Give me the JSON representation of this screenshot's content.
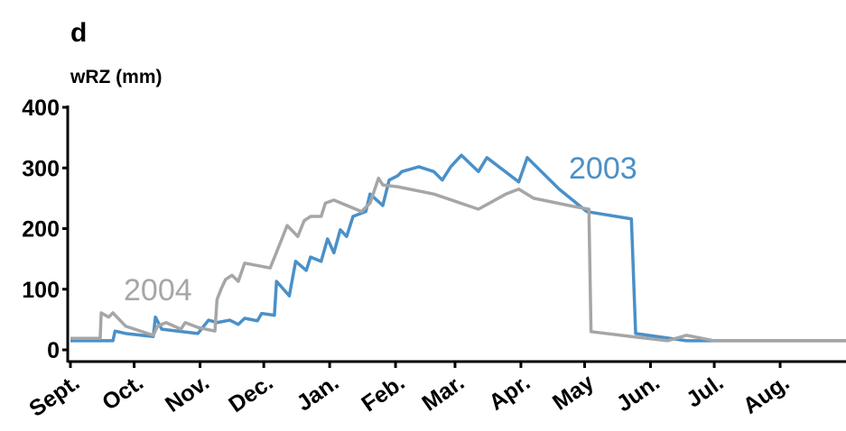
{
  "chart_data": {
    "type": "line",
    "title": "d",
    "y_label": "wRZ (mm)",
    "xlim": [
      0,
      365
    ],
    "xticks": [
      {
        "value": 0,
        "label": "Sept."
      },
      {
        "value": 30,
        "label": "Oct."
      },
      {
        "value": 61,
        "label": "Nov."
      },
      {
        "value": 91,
        "label": "Dec."
      },
      {
        "value": 122,
        "label": "Jan."
      },
      {
        "value": 153,
        "label": "Feb."
      },
      {
        "value": 181,
        "label": "Mar."
      },
      {
        "value": 212,
        "label": "Apr."
      },
      {
        "value": 242,
        "label": "May"
      },
      {
        "value": 273,
        "label": "Jun."
      },
      {
        "value": 303,
        "label": "Jul."
      },
      {
        "value": 334,
        "label": "Aug."
      }
    ],
    "ylim": [
      0,
      400
    ],
    "yticks": [
      0,
      100,
      200,
      300,
      400
    ],
    "series": [
      {
        "name": "2003",
        "color": "#4a90c8",
        "x": [
          0,
          20,
          21,
          26,
          39,
          40,
          43,
          60,
          65,
          69,
          75,
          79,
          82,
          88,
          90,
          96,
          97,
          103,
          106,
          111,
          113,
          118,
          121,
          124,
          127,
          130,
          133,
          139,
          141,
          147,
          150,
          154,
          156,
          164,
          171,
          175,
          179,
          184,
          192,
          196,
          211,
          215,
          230,
          243,
          264,
          266,
          290,
          365
        ],
        "values": [
          15,
          15,
          31,
          27,
          22,
          54,
          34,
          27,
          49,
          45,
          49,
          42,
          52,
          48,
          60,
          57,
          113,
          89,
          146,
          131,
          153,
          146,
          183,
          160,
          198,
          187,
          220,
          228,
          257,
          238,
          280,
          287,
          294,
          302,
          294,
          280,
          302,
          321,
          294,
          317,
          277,
          317,
          265,
          228,
          216,
          27,
          15,
          15
        ]
      },
      {
        "name": "2004",
        "color": "#a6a6a6",
        "x": [
          0,
          14,
          14.5,
          18,
          20,
          26,
          39,
          41,
          45,
          52,
          54,
          60,
          68,
          69,
          71,
          73,
          76,
          79,
          82,
          94,
          97,
          102,
          107,
          110,
          113,
          118,
          120,
          124,
          137,
          141,
          145,
          147,
          154,
          171,
          192,
          205,
          211,
          218,
          239,
          244,
          245,
          264,
          281,
          290,
          303,
          365
        ],
        "values": [
          19,
          19,
          61,
          54,
          61,
          39,
          24,
          39,
          45,
          34,
          45,
          37,
          31,
          83,
          101,
          116,
          123,
          113,
          143,
          135,
          161,
          205,
          187,
          213,
          220,
          220,
          242,
          247,
          228,
          242,
          283,
          272,
          269,
          257,
          232,
          257,
          265,
          250,
          235,
          232,
          30,
          22,
          15,
          24,
          15,
          15
        ]
      }
    ]
  }
}
